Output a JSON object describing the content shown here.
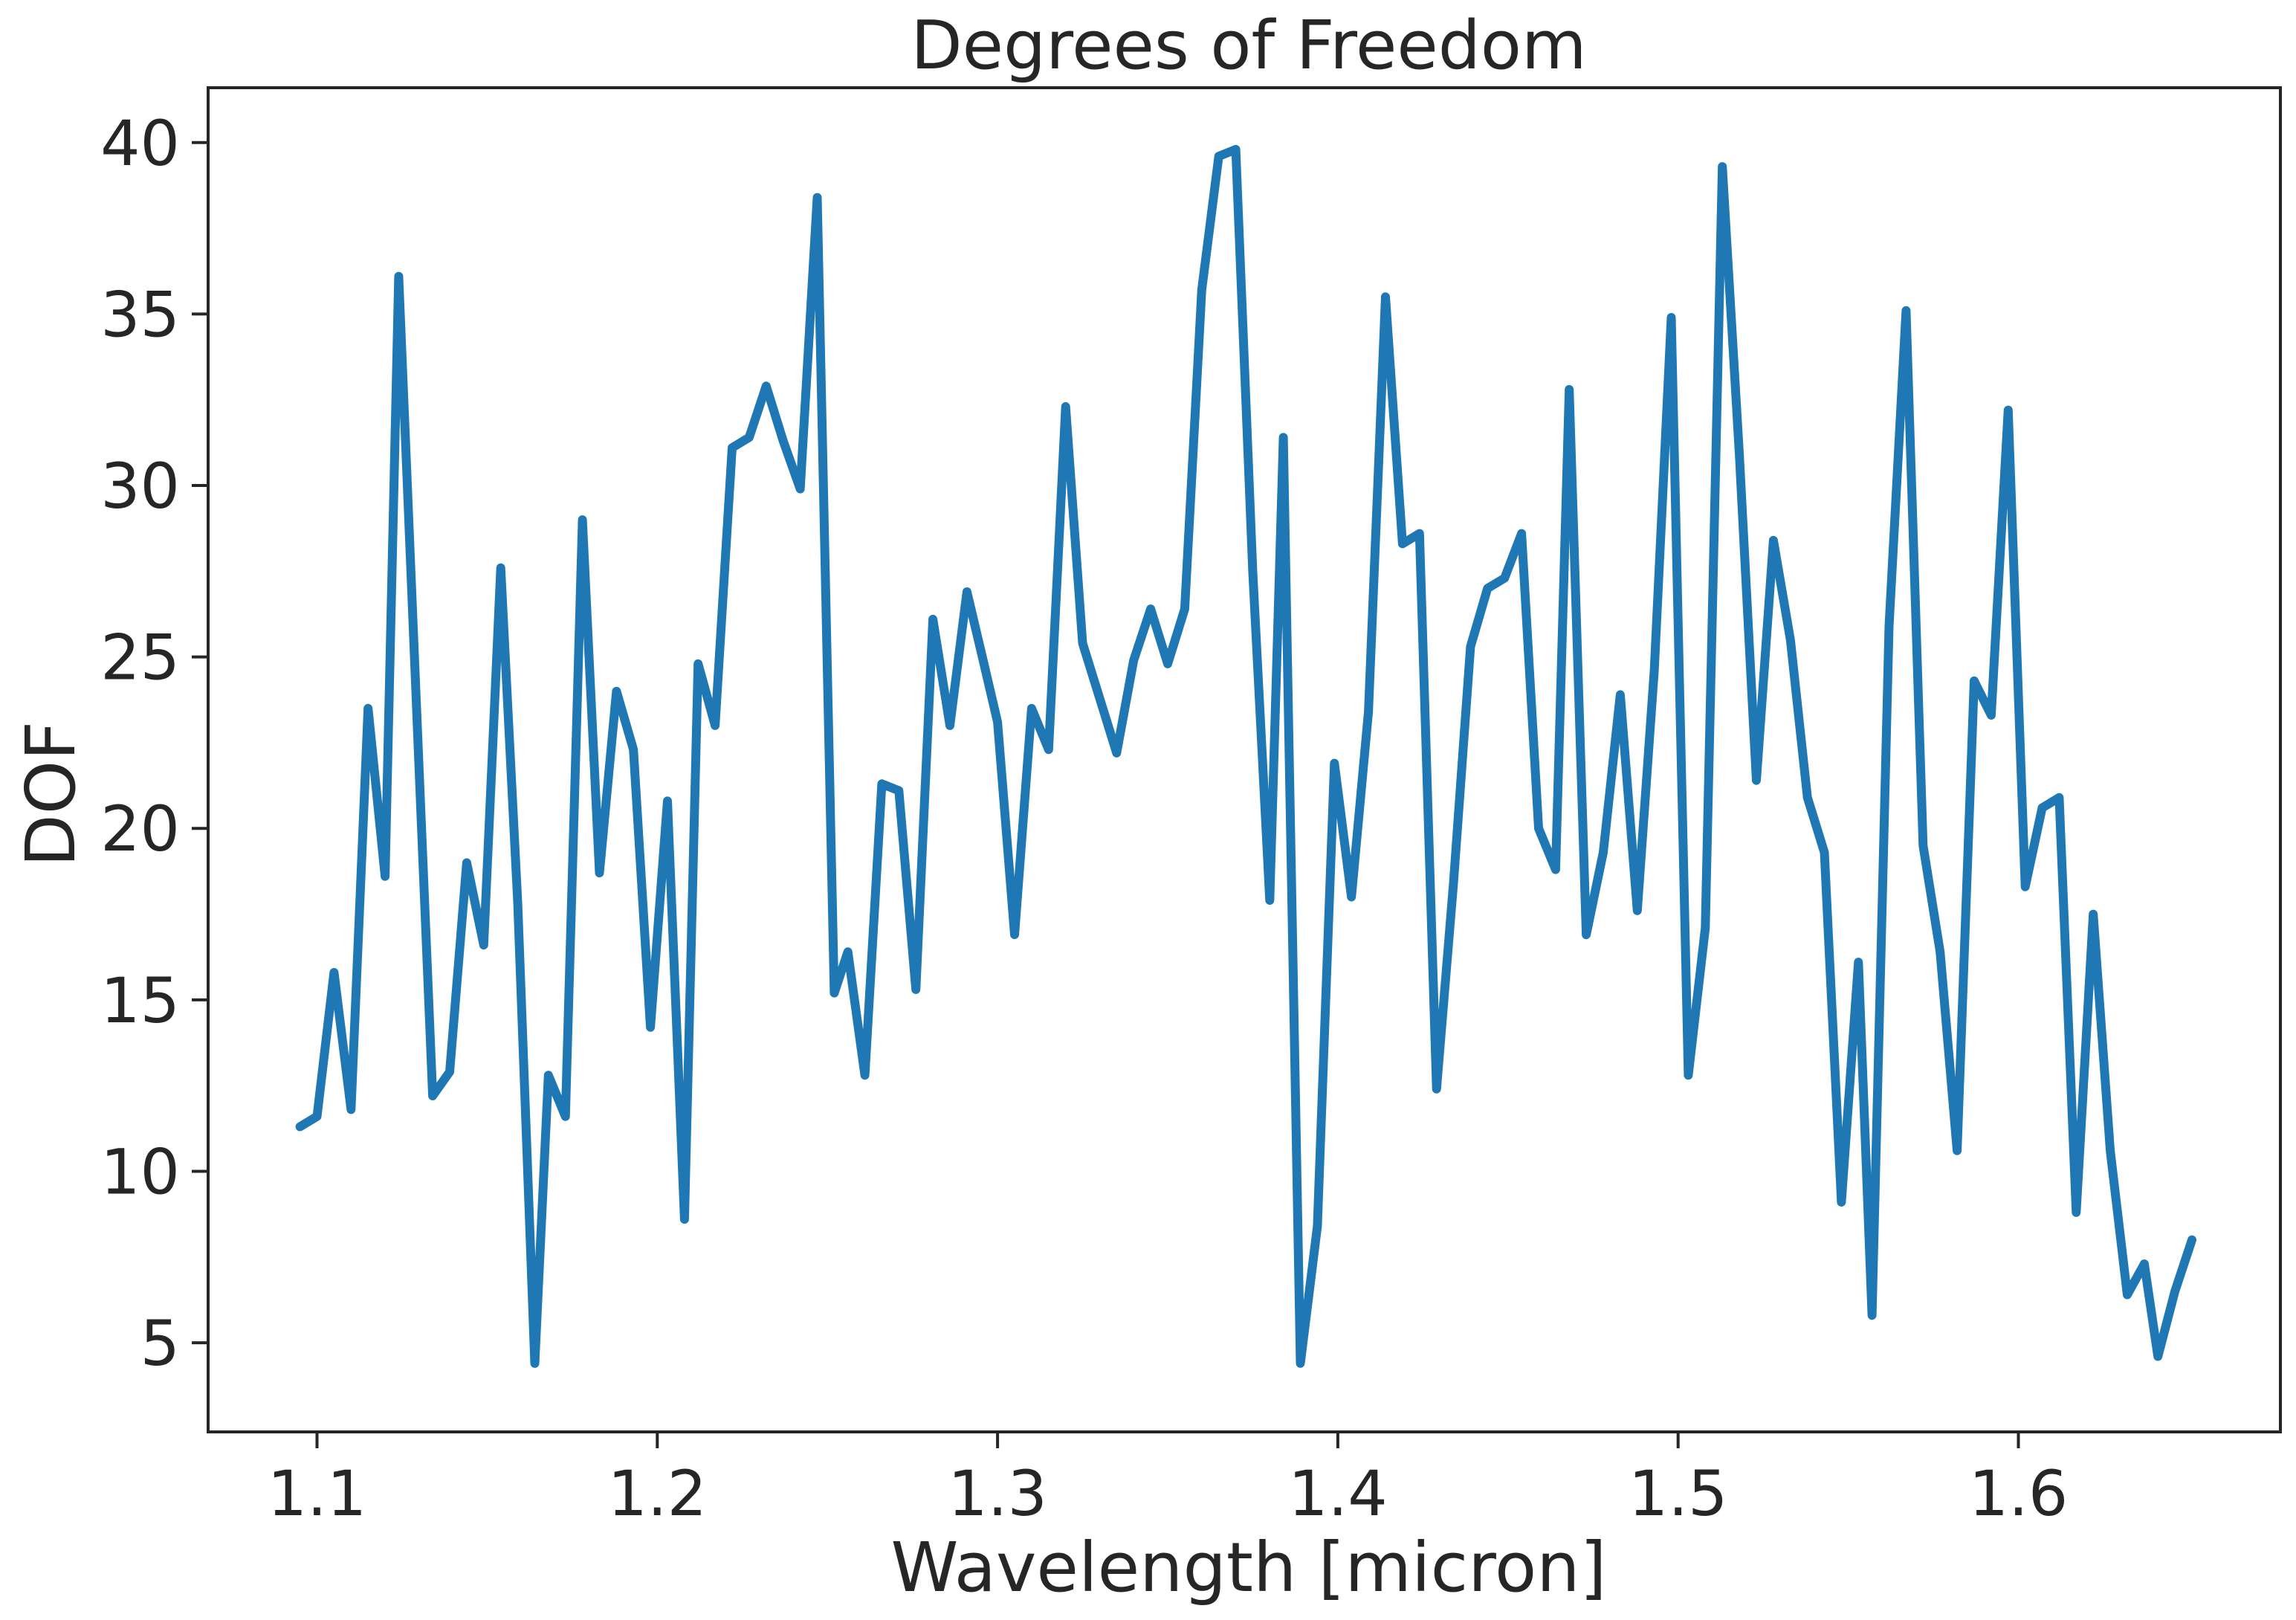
{
  "chart_data": {
    "type": "line",
    "title": "Degrees of Freedom",
    "xlabel": "Wavelength [micron]",
    "ylabel": "DOF",
    "xlim": [
      1.068,
      1.677
    ],
    "ylim": [
      2.4,
      41.6
    ],
    "xticks": [
      1.1,
      1.2,
      1.3,
      1.4,
      1.5,
      1.6
    ],
    "xtick_labels": [
      "1.1",
      "1.2",
      "1.3",
      "1.4",
      "1.5",
      "1.6"
    ],
    "yticks": [
      5,
      10,
      15,
      20,
      25,
      30,
      35,
      40
    ],
    "ytick_labels": [
      "5",
      "10",
      "15",
      "20",
      "25",
      "30",
      "35",
      "40"
    ],
    "grid": false,
    "series": [
      {
        "color": "#1f77b4",
        "x": [
          1.095,
          1.1,
          1.105,
          1.11,
          1.115,
          1.12,
          1.124,
          1.129,
          1.134,
          1.139,
          1.144,
          1.149,
          1.154,
          1.159,
          1.164,
          1.168,
          1.173,
          1.178,
          1.183,
          1.188,
          1.193,
          1.198,
          1.203,
          1.208,
          1.212,
          1.217,
          1.222,
          1.227,
          1.232,
          1.237,
          1.242,
          1.247,
          1.252,
          1.256,
          1.261,
          1.266,
          1.271,
          1.276,
          1.281,
          1.286,
          1.291,
          1.296,
          1.3,
          1.305,
          1.31,
          1.315,
          1.32,
          1.325,
          1.33,
          1.335,
          1.34,
          1.345,
          1.35,
          1.355,
          1.36,
          1.365,
          1.37,
          1.375,
          1.38,
          1.384,
          1.389,
          1.394,
          1.399,
          1.404,
          1.409,
          1.414,
          1.419,
          1.424,
          1.429,
          1.434,
          1.439,
          1.444,
          1.449,
          1.454,
          1.459,
          1.464,
          1.468,
          1.473,
          1.478,
          1.483,
          1.488,
          1.493,
          1.498,
          1.503,
          1.508,
          1.513,
          1.518,
          1.523,
          1.528,
          1.533,
          1.538,
          1.543,
          1.548,
          1.553,
          1.557,
          1.562,
          1.567,
          1.572,
          1.577,
          1.582,
          1.587,
          1.592,
          1.597,
          1.602,
          1.607,
          1.612,
          1.617,
          1.622,
          1.627,
          1.632,
          1.637,
          1.641,
          1.646,
          1.651
        ],
        "y": [
          11.3,
          11.6,
          15.8,
          11.8,
          23.5,
          18.6,
          36.1,
          24.1,
          12.2,
          12.9,
          19.0,
          16.6,
          27.6,
          17.8,
          4.4,
          12.8,
          11.6,
          29.0,
          18.7,
          24.0,
          22.3,
          14.2,
          20.8,
          8.6,
          24.8,
          23.0,
          31.1,
          31.4,
          32.9,
          31.3,
          29.9,
          38.4,
          15.2,
          16.4,
          12.8,
          21.3,
          21.1,
          15.3,
          26.1,
          23.0,
          26.9,
          24.8,
          23.1,
          16.9,
          23.5,
          22.3,
          32.3,
          25.4,
          23.8,
          22.2,
          24.9,
          26.4,
          24.8,
          26.4,
          35.7,
          39.6,
          39.8,
          27.5,
          17.9,
          31.4,
          4.4,
          8.4,
          21.9,
          18.0,
          23.4,
          35.5,
          28.3,
          28.6,
          12.4,
          18.4,
          25.3,
          27.0,
          27.3,
          28.6,
          20.0,
          18.8,
          32.8,
          16.9,
          19.3,
          23.9,
          17.6,
          24.6,
          34.9,
          12.8,
          17.1,
          39.3,
          30.9,
          21.4,
          28.4,
          25.5,
          20.9,
          19.3,
          9.1,
          16.1,
          5.8,
          25.9,
          35.1,
          19.5,
          16.4,
          10.6,
          24.3,
          23.3,
          32.2,
          18.3,
          20.6,
          20.9,
          8.8,
          17.5,
          10.6,
          6.4,
          7.3,
          4.6,
          6.5,
          8.0
        ]
      }
    ]
  }
}
